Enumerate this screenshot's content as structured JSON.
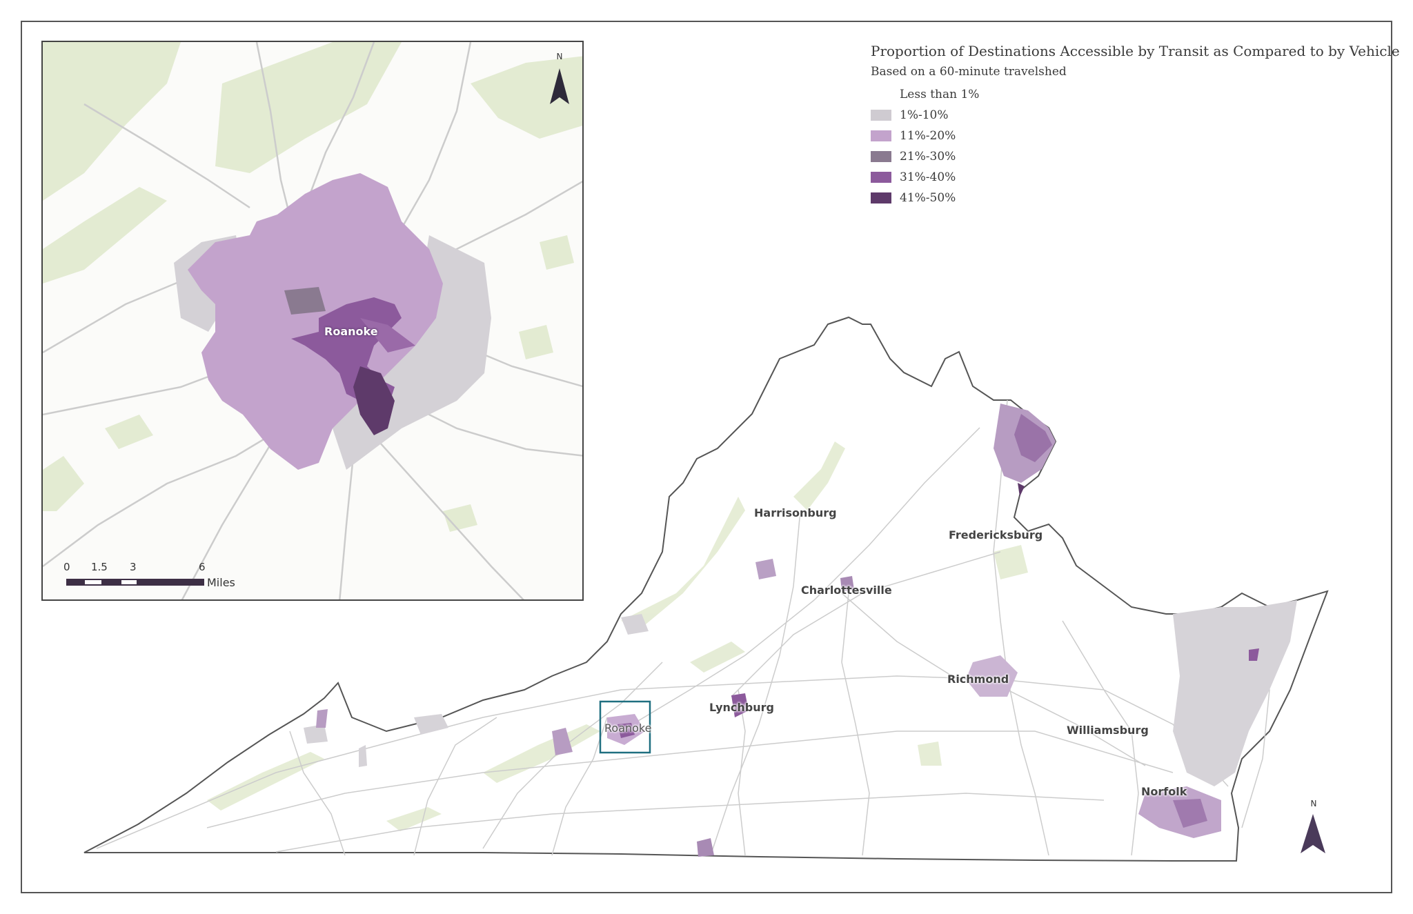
{
  "legend": {
    "title": "Proportion of Destinations Accessible by Transit as Compared to by Vehicle",
    "subtitle": "Based on a 60-minute travelshed",
    "classes": [
      {
        "label": "Less than 1%",
        "color": "#ffffff"
      },
      {
        "label": "1%-10%",
        "color": "#cfcbd1"
      },
      {
        "label": "11%-20%",
        "color": "#c3a3cc"
      },
      {
        "label": "21%-30%",
        "color": "#8a7a90"
      },
      {
        "label": "31%-40%",
        "color": "#8c5a9c"
      },
      {
        "label": "41%-50%",
        "color": "#5e3a6a"
      }
    ]
  },
  "cities": {
    "harrisonburg": "Harrisonburg",
    "fredericksburg": "Fredericksburg",
    "charlottesville": "Charlottesville",
    "richmond": "Richmond",
    "lynchburg": "Lynchburg",
    "roanoke": "Roanoke",
    "williamsburg": "Williamsburg",
    "norfolk": "Norfolk"
  },
  "inset": {
    "city": "Roanoke",
    "scale_ticks": [
      "0",
      "1.5",
      "3",
      "6"
    ],
    "scale_unit": "Miles",
    "north_label": "N"
  },
  "main_north_label": "N",
  "colors": {
    "border": "#555555",
    "forest": "#e3ebd2",
    "roads": "#c8c8c8",
    "inset_box": "#1f6f80"
  }
}
